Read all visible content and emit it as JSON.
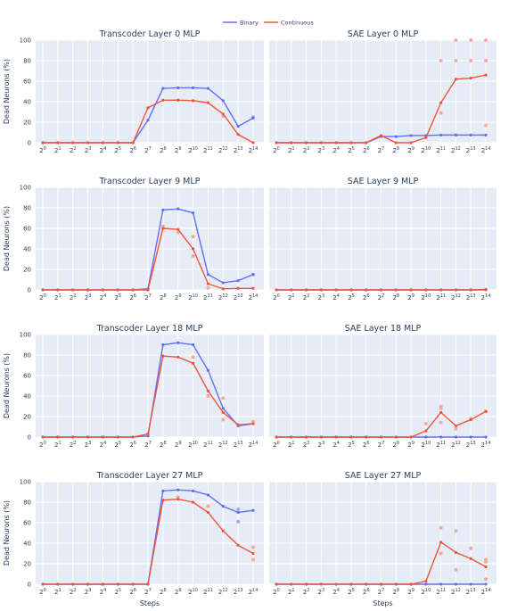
{
  "legend": [
    {
      "name": "Binary",
      "color": "#636efa"
    },
    {
      "name": "Continuous",
      "color": "#ef553b"
    }
  ],
  "axes": {
    "ylabel": "Dead Neurons (%)",
    "xlabel": "Steps",
    "y_ticks": [
      "0",
      "20",
      "40",
      "60",
      "80",
      "100"
    ],
    "x_ticks": [
      "0",
      "1",
      "2",
      "3",
      "4",
      "5",
      "6",
      "7",
      "8",
      "9",
      "10",
      "11",
      "12",
      "13",
      "14"
    ],
    "x_tick_base": "2"
  },
  "style": {
    "plot_bg": "#e5ecf6",
    "grid": "#ffffff",
    "binary_color": "#636efa",
    "continuous_color": "#ef553b",
    "binary_faint": "#a3a8f7",
    "continuous_faint": "#f5a99a"
  },
  "chart_data": [
    {
      "title": "Transcoder Layer 0 MLP",
      "type": "line",
      "ylim": [
        0,
        100
      ],
      "x": [
        0,
        1,
        2,
        3,
        4,
        5,
        6,
        7,
        8,
        9,
        10,
        11,
        12,
        13,
        14
      ],
      "series": [
        {
          "name": "Binary",
          "values": [
            0,
            0,
            0,
            0,
            0,
            0,
            0,
            22,
            53,
            53.5,
            53.5,
            53,
            41,
            16,
            24
          ]
        },
        {
          "name": "Continuous",
          "values": [
            0,
            0,
            0,
            0,
            0,
            0,
            0,
            34,
            41.5,
            41.5,
            41,
            39,
            28,
            8,
            0
          ]
        }
      ],
      "scatter": [
        {
          "series": "Continuous",
          "x": 12,
          "y": 26
        },
        {
          "series": "Binary",
          "x": 14,
          "y": 25
        }
      ]
    },
    {
      "title": "SAE Layer 0 MLP",
      "type": "line",
      "ylim": [
        0,
        100
      ],
      "x": [
        0,
        1,
        2,
        3,
        4,
        5,
        6,
        7,
        8,
        9,
        10,
        11,
        12,
        13,
        14
      ],
      "series": [
        {
          "name": "Binary",
          "values": [
            0,
            0,
            0,
            0,
            0,
            0,
            0,
            6,
            6,
            7,
            7,
            7.5,
            7.5,
            7.5,
            7.5
          ]
        },
        {
          "name": "Continuous",
          "values": [
            0,
            0,
            0,
            0,
            0,
            0,
            0,
            7,
            0,
            0,
            5,
            39,
            62,
            63,
            66
          ]
        }
      ],
      "scatter": [
        {
          "series": "Continuous",
          "x": 11,
          "y": 80
        },
        {
          "series": "Continuous",
          "x": 11,
          "y": 29
        },
        {
          "series": "Continuous",
          "x": 12,
          "y": 100
        },
        {
          "series": "Continuous",
          "x": 12,
          "y": 80
        },
        {
          "series": "Continuous",
          "x": 13,
          "y": 100
        },
        {
          "series": "Continuous",
          "x": 13,
          "y": 80
        },
        {
          "series": "Continuous",
          "x": 14,
          "y": 100
        },
        {
          "series": "Continuous",
          "x": 14,
          "y": 80
        },
        {
          "series": "Continuous",
          "x": 14,
          "y": 17
        }
      ]
    },
    {
      "title": "Transcoder Layer 9 MLP",
      "type": "line",
      "ylim": [
        0,
        100
      ],
      "x": [
        0,
        1,
        2,
        3,
        4,
        5,
        6,
        7,
        8,
        9,
        10,
        11,
        12,
        13,
        14
      ],
      "series": [
        {
          "name": "Binary",
          "values": [
            0,
            0,
            0,
            0,
            0,
            0,
            0,
            1,
            78,
            79,
            75,
            15,
            7,
            9,
            15
          ]
        },
        {
          "name": "Continuous",
          "values": [
            0,
            0,
            0,
            0,
            0,
            0,
            0,
            0,
            60,
            59,
            40,
            6,
            1,
            1.5,
            1.5
          ]
        }
      ],
      "scatter": [
        {
          "series": "Continuous",
          "x": 8,
          "y": 62
        },
        {
          "series": "Continuous",
          "x": 9,
          "y": 56
        },
        {
          "series": "Continuous",
          "x": 10,
          "y": 52
        },
        {
          "series": "Continuous",
          "x": 10,
          "y": 33
        },
        {
          "series": "Continuous",
          "x": 11,
          "y": 2
        },
        {
          "series": "Binary",
          "x": 14,
          "y": 15
        }
      ]
    },
    {
      "title": "SAE Layer 9 MLP",
      "type": "line",
      "ylim": [
        0,
        100
      ],
      "x": [
        0,
        1,
        2,
        3,
        4,
        5,
        6,
        7,
        8,
        9,
        10,
        11,
        12,
        13,
        14
      ],
      "series": [
        {
          "name": "Binary",
          "values": [
            0,
            0,
            0,
            0,
            0,
            0,
            0,
            0,
            0,
            0,
            0,
            0,
            0,
            0,
            0.5
          ]
        },
        {
          "name": "Continuous",
          "values": [
            0,
            0,
            0,
            0,
            0,
            0,
            0,
            0,
            0,
            0,
            0,
            0,
            0,
            0,
            0
          ]
        }
      ],
      "scatter": []
    },
    {
      "title": "Transcoder Layer 18 MLP",
      "type": "line",
      "ylim": [
        0,
        100
      ],
      "x": [
        0,
        1,
        2,
        3,
        4,
        5,
        6,
        7,
        8,
        9,
        10,
        11,
        12,
        13,
        14
      ],
      "series": [
        {
          "name": "Binary",
          "values": [
            0,
            0,
            0,
            0,
            0,
            0,
            0,
            1,
            90,
            92,
            90,
            65,
            28,
            11,
            13
          ]
        },
        {
          "name": "Continuous",
          "values": [
            0,
            0,
            0,
            0,
            0,
            0,
            0,
            3,
            79,
            78,
            72,
            45,
            24,
            12,
            13
          ]
        }
      ],
      "scatter": [
        {
          "series": "Continuous",
          "x": 10,
          "y": 78
        },
        {
          "series": "Continuous",
          "x": 11,
          "y": 40
        },
        {
          "series": "Continuous",
          "x": 12,
          "y": 38
        },
        {
          "series": "Continuous",
          "x": 12,
          "y": 17
        },
        {
          "series": "Continuous",
          "x": 14,
          "y": 15
        }
      ]
    },
    {
      "title": "SAE Layer 18 MLP",
      "type": "line",
      "ylim": [
        0,
        100
      ],
      "x": [
        0,
        1,
        2,
        3,
        4,
        5,
        6,
        7,
        8,
        9,
        10,
        11,
        12,
        13,
        14
      ],
      "series": [
        {
          "name": "Binary",
          "values": [
            0,
            0,
            0,
            0,
            0,
            0,
            0,
            0,
            0,
            0,
            0,
            0,
            0,
            0,
            0
          ]
        },
        {
          "name": "Continuous",
          "values": [
            0,
            0,
            0,
            0,
            0,
            0,
            0,
            0,
            0,
            0,
            6,
            24,
            11,
            17,
            25
          ]
        }
      ],
      "scatter": [
        {
          "series": "Continuous",
          "x": 10,
          "y": 13
        },
        {
          "series": "Continuous",
          "x": 11,
          "y": 30
        },
        {
          "series": "Continuous",
          "x": 11,
          "y": 28
        },
        {
          "series": "Continuous",
          "x": 11,
          "y": 14
        },
        {
          "series": "Continuous",
          "x": 12,
          "y": 8
        },
        {
          "series": "Continuous",
          "x": 13,
          "y": 18
        },
        {
          "series": "Continuous",
          "x": 14,
          "y": 25
        }
      ]
    },
    {
      "title": "Transcoder Layer 27 MLP",
      "type": "line",
      "ylim": [
        0,
        100
      ],
      "x": [
        0,
        1,
        2,
        3,
        4,
        5,
        6,
        7,
        8,
        9,
        10,
        11,
        12,
        13,
        14
      ],
      "series": [
        {
          "name": "Binary",
          "values": [
            0,
            0,
            0,
            0,
            0,
            0,
            0,
            0,
            91,
            92,
            91,
            87,
            76,
            70,
            72
          ]
        },
        {
          "name": "Continuous",
          "values": [
            0,
            0,
            0,
            0,
            0,
            0,
            0,
            0,
            82,
            83,
            80,
            70,
            52,
            38,
            30
          ]
        }
      ],
      "scatter": [
        {
          "series": "Continuous",
          "x": 9,
          "y": 85
        },
        {
          "series": "Continuous",
          "x": 11,
          "y": 76
        },
        {
          "series": "Binary",
          "x": 13,
          "y": 73
        },
        {
          "series": "Binary",
          "x": 13,
          "y": 61
        },
        {
          "series": "Continuous",
          "x": 14,
          "y": 36
        },
        {
          "series": "Continuous",
          "x": 14,
          "y": 24
        }
      ]
    },
    {
      "title": "SAE Layer 27 MLP",
      "type": "line",
      "ylim": [
        0,
        100
      ],
      "x": [
        0,
        1,
        2,
        3,
        4,
        5,
        6,
        7,
        8,
        9,
        10,
        11,
        12,
        13,
        14
      ],
      "series": [
        {
          "name": "Binary",
          "values": [
            0,
            0,
            0,
            0,
            0,
            0,
            0,
            0,
            0,
            0,
            0,
            0,
            0,
            0,
            0
          ]
        },
        {
          "name": "Continuous",
          "values": [
            0,
            0,
            0,
            0,
            0,
            0,
            0,
            0,
            0,
            0,
            3,
            41,
            31,
            25,
            17
          ]
        }
      ],
      "scatter": [
        {
          "series": "Continuous",
          "x": 11,
          "y": 55
        },
        {
          "series": "Continuous",
          "x": 11,
          "y": 30
        },
        {
          "series": "Continuous",
          "x": 12,
          "y": 52
        },
        {
          "series": "Continuous",
          "x": 12,
          "y": 14
        },
        {
          "series": "Continuous",
          "x": 13,
          "y": 35
        },
        {
          "series": "Continuous",
          "x": 14,
          "y": 24
        },
        {
          "series": "Continuous",
          "x": 14,
          "y": 22
        },
        {
          "series": "Continuous",
          "x": 14,
          "y": 5
        }
      ]
    }
  ]
}
